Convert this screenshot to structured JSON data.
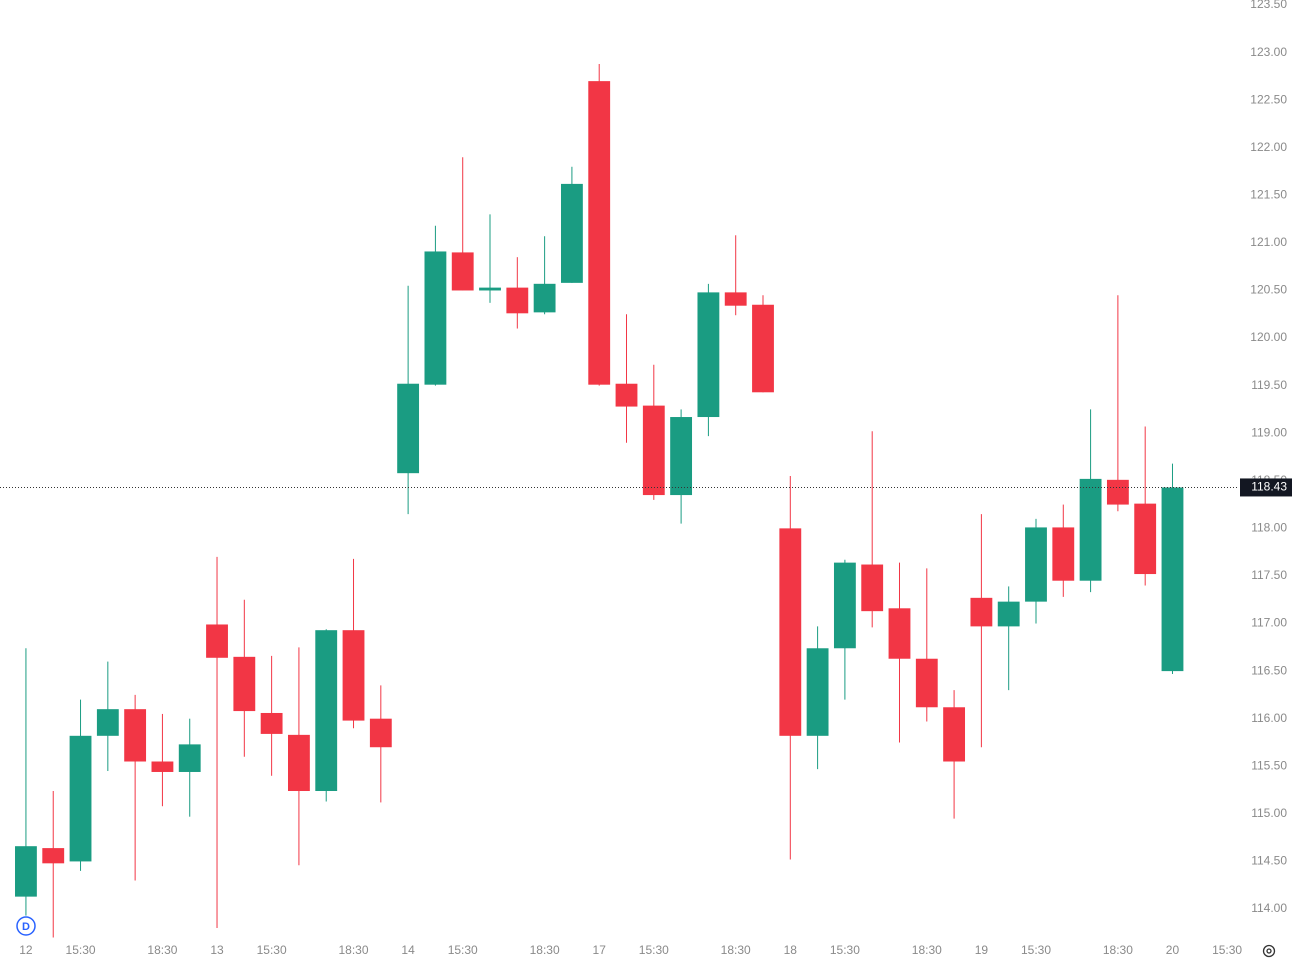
{
  "chart_data": {
    "type": "candlestick",
    "x": [
      0,
      1,
      2,
      3,
      4,
      5,
      6,
      7,
      8,
      9,
      10,
      11,
      12,
      13,
      14,
      15,
      16,
      17,
      18,
      19,
      20,
      21,
      22,
      23,
      24,
      25,
      26,
      27,
      28,
      29,
      30,
      31,
      32,
      33,
      34,
      35,
      36,
      37,
      38,
      39,
      40,
      41,
      42
    ],
    "open": [
      114.13,
      114.64,
      114.5,
      115.82,
      116.1,
      115.55,
      115.44,
      116.99,
      116.65,
      116.06,
      115.83,
      115.24,
      116.93,
      116.0,
      118.58,
      119.51,
      120.9,
      120.5,
      120.53,
      120.27,
      120.58,
      122.7,
      119.52,
      119.29,
      118.35,
      119.17,
      120.48,
      120.35,
      118.0,
      115.82,
      116.74,
      117.62,
      117.16,
      116.63,
      116.12,
      117.27,
      116.97,
      117.23,
      118.01,
      117.45,
      118.51,
      118.26,
      116.5
    ],
    "high": [
      116.74,
      115.24,
      116.2,
      116.6,
      116.25,
      116.05,
      116.0,
      117.7,
      117.25,
      116.66,
      116.75,
      116.94,
      117.68,
      116.35,
      120.55,
      121.18,
      121.9,
      121.3,
      120.85,
      121.07,
      121.8,
      122.88,
      120.25,
      119.72,
      119.25,
      120.57,
      121.08,
      120.45,
      118.55,
      116.97,
      117.67,
      119.02,
      117.64,
      117.58,
      116.3,
      118.15,
      117.39,
      118.1,
      118.25,
      119.25,
      120.45,
      119.07,
      118.68
    ],
    "low": [
      113.93,
      113.7,
      114.4,
      115.45,
      114.3,
      115.08,
      114.97,
      113.8,
      115.6,
      115.4,
      114.46,
      115.13,
      115.9,
      115.12,
      118.15,
      119.5,
      120.5,
      120.37,
      120.1,
      120.25,
      120.58,
      119.5,
      118.9,
      118.3,
      118.05,
      118.97,
      120.24,
      119.43,
      114.52,
      115.47,
      116.2,
      116.96,
      115.75,
      115.97,
      114.95,
      115.7,
      116.3,
      117.0,
      117.28,
      117.33,
      118.18,
      117.4,
      116.47
    ],
    "close": [
      114.66,
      114.48,
      115.82,
      116.1,
      115.55,
      115.44,
      115.73,
      116.64,
      116.08,
      115.84,
      115.24,
      116.93,
      115.98,
      115.7,
      119.52,
      120.91,
      120.5,
      120.53,
      120.26,
      120.57,
      121.62,
      119.51,
      119.28,
      118.35,
      119.17,
      120.48,
      120.34,
      119.43,
      115.82,
      116.74,
      117.64,
      117.13,
      116.63,
      116.12,
      115.55,
      116.97,
      117.23,
      118.01,
      117.45,
      118.52,
      118.25,
      117.52,
      118.43
    ],
    "up_color": "#1a9c82",
    "down_color": "#f23645",
    "xlim": [
      -0.95,
      44.4
    ],
    "xticks": [
      {
        "value": 0,
        "label": "12"
      },
      {
        "value": 2,
        "label": "15:30"
      },
      {
        "value": 5,
        "label": "18:30"
      },
      {
        "value": 7,
        "label": "13"
      },
      {
        "value": 9,
        "label": "15:30"
      },
      {
        "value": 12,
        "label": "18:30"
      },
      {
        "value": 14,
        "label": "14"
      },
      {
        "value": 16,
        "label": "15:30"
      },
      {
        "value": 19,
        "label": "18:30"
      },
      {
        "value": 21,
        "label": "17"
      },
      {
        "value": 23,
        "label": "15:30"
      },
      {
        "value": 26,
        "label": "18:30"
      },
      {
        "value": 28,
        "label": "18"
      },
      {
        "value": 30,
        "label": "15:30"
      },
      {
        "value": 33,
        "label": "18:30"
      },
      {
        "value": 35,
        "label": "19"
      },
      {
        "value": 37,
        "label": "15:30"
      },
      {
        "value": 40,
        "label": "18:30"
      },
      {
        "value": 42,
        "label": "20"
      },
      {
        "value": 44,
        "label": "15:30"
      }
    ],
    "ylim": [
      114,
      123.5
    ],
    "yticks": [
      {
        "value": 114,
        "label": "114.00"
      },
      {
        "value": 114.5,
        "label": "114.50"
      },
      {
        "value": 115,
        "label": "115.00"
      },
      {
        "value": 115.5,
        "label": "115.50"
      },
      {
        "value": 116,
        "label": "116.00"
      },
      {
        "value": 116.5,
        "label": "116.50"
      },
      {
        "value": 117,
        "label": "117.00"
      },
      {
        "value": 117.5,
        "label": "117.50"
      },
      {
        "value": 118,
        "label": "118.00"
      },
      {
        "value": 118.5,
        "label": "118.50"
      },
      {
        "value": 119,
        "label": "119.00"
      },
      {
        "value": 119.5,
        "label": "119.50"
      },
      {
        "value": 120,
        "label": "120.00"
      },
      {
        "value": 120.5,
        "label": "120.50"
      },
      {
        "value": 121,
        "label": "121.00"
      },
      {
        "value": 121.5,
        "label": "121.50"
      },
      {
        "value": 122,
        "label": "122.00"
      },
      {
        "value": 122.5,
        "label": "122.50"
      },
      {
        "value": 123,
        "label": "123.00"
      },
      {
        "value": 123.5,
        "label": "123.50"
      }
    ],
    "last_price": 118.43,
    "interval_badge": "D"
  }
}
